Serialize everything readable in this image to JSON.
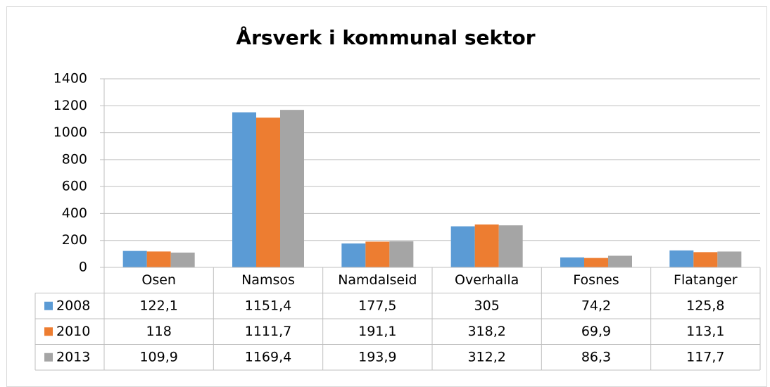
{
  "chart_data": {
    "type": "bar",
    "title": "Årsverk i kommunal sektor",
    "categories": [
      "Osen",
      "Namsos",
      "Namdalseid",
      "Overhalla",
      "Fosnes",
      "Flatanger"
    ],
    "series": [
      {
        "name": "2008",
        "color": "#5b9bd5",
        "values": [
          122.1,
          1151.4,
          177.5,
          305,
          74.2,
          125.8
        ],
        "value_labels": [
          "122,1",
          "1151,4",
          "177,5",
          "305",
          "74,2",
          "125,8"
        ]
      },
      {
        "name": "2010",
        "color": "#ed7d31",
        "values": [
          118,
          1111.7,
          191.1,
          318.2,
          69.9,
          113.1
        ],
        "value_labels": [
          "118",
          "1111,7",
          "191,1",
          "318,2",
          "69,9",
          "113,1"
        ]
      },
      {
        "name": "2013",
        "color": "#a5a5a5",
        "values": [
          109.9,
          1169.4,
          193.9,
          312.2,
          86.3,
          117.7
        ],
        "value_labels": [
          "109,9",
          "1169,4",
          "193,9",
          "312,2",
          "86,3",
          "117,7"
        ]
      }
    ],
    "ylim": [
      0,
      1400
    ],
    "yticks": [
      0,
      200,
      400,
      600,
      800,
      1000,
      1200,
      1400
    ],
    "grid": true
  }
}
